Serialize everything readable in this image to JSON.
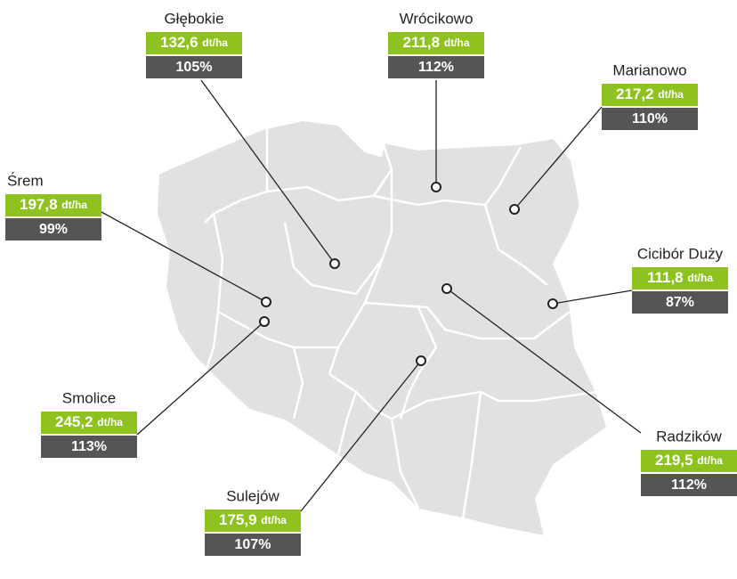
{
  "locations": [
    {
      "name": "Głębokie",
      "yield": "132,6",
      "unit": "dt/ha",
      "percent": "105%"
    },
    {
      "name": "Wrócikowo",
      "yield": "211,8",
      "unit": "dt/ha",
      "percent": "112%"
    },
    {
      "name": "Marianowo",
      "yield": "217,2",
      "unit": "dt/ha",
      "percent": "110%"
    },
    {
      "name": "Śrem",
      "yield": "197,8",
      "unit": "dt/ha",
      "percent": "99%"
    },
    {
      "name": "Cicibór Duży",
      "yield": "111,8",
      "unit": "dt/ha",
      "percent": "87%"
    },
    {
      "name": "Smolice",
      "yield": "245,2",
      "unit": "dt/ha",
      "percent": "113%"
    },
    {
      "name": "Radzików",
      "yield": "219,5",
      "unit": "dt/ha",
      "percent": "112%"
    },
    {
      "name": "Sulejów",
      "yield": "175,9",
      "unit": "dt/ha",
      "percent": "107%"
    }
  ]
}
